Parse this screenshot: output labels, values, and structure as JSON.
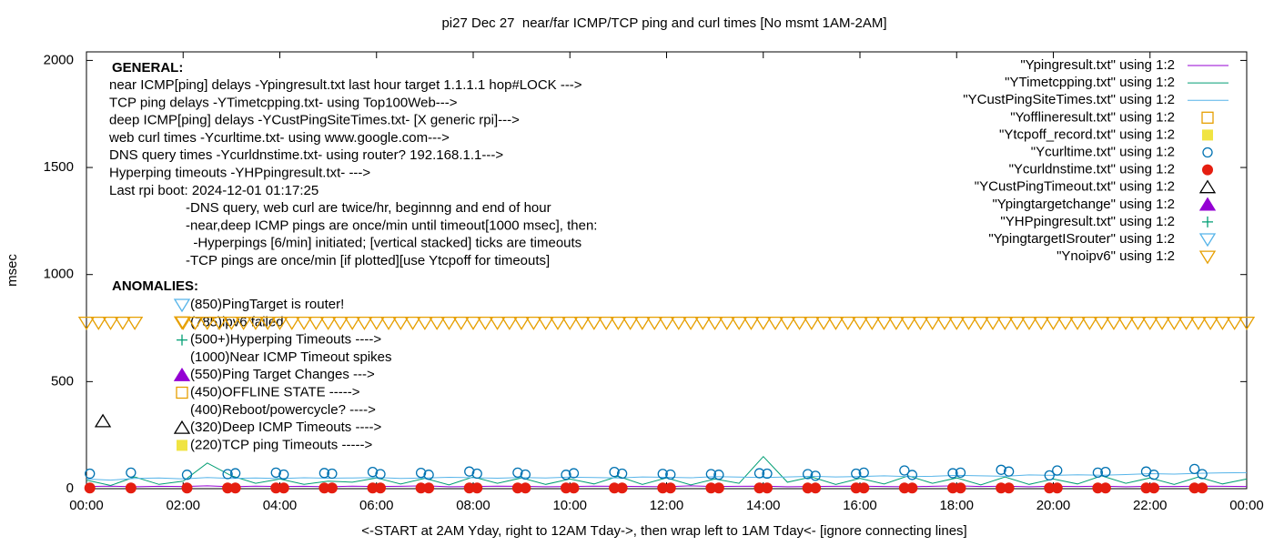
{
  "chart_data": {
    "type": "scatter",
    "title": "pi27 Dec 27  near/far ICMP/TCP ping and curl times [No msmt 1AM-2AM]",
    "xlabel": "<-START at 2AM Yday, right to 12AM Tday->, then wrap left to 1AM Tday<- [ignore connecting lines]",
    "ylabel": "msec",
    "xlim": [
      0,
      24
    ],
    "ylim": [
      0,
      2040
    ],
    "xticks": [
      {
        "value": 0,
        "label": "00:00"
      },
      {
        "value": 2,
        "label": "02:00"
      },
      {
        "value": 4,
        "label": "04:00"
      },
      {
        "value": 6,
        "label": "06:00"
      },
      {
        "value": 8,
        "label": "08:00"
      },
      {
        "value": 10,
        "label": "10:00"
      },
      {
        "value": 12,
        "label": "12:00"
      },
      {
        "value": 14,
        "label": "14:00"
      },
      {
        "value": 16,
        "label": "16:00"
      },
      {
        "value": 18,
        "label": "18:00"
      },
      {
        "value": 20,
        "label": "20:00"
      },
      {
        "value": 22,
        "label": "22:00"
      },
      {
        "value": 24,
        "label": "00:00"
      }
    ],
    "yticks": [
      0,
      500,
      1000,
      1500,
      2000
    ],
    "legend": "upper right",
    "annotations": {
      "general_heading": "GENERAL:",
      "general": [
        "near ICMP[ping] delays -Ypingresult.txt last hour target 1.1.1.1 hop#LOCK --->",
        "TCP ping delays -YTimetcpping.txt- using Top100Web--->",
        "deep ICMP[ping] delays -YCustPingSiteTimes.txt- [X generic rpi]--->",
        "web curl times -Ycurltime.txt- using www.google.com--->",
        "DNS query times -Ycurldnstime.txt- using router? 192.168.1.1--->",
        "Hyperping timeouts -YHPpingresult.txt- --->",
        "Last rpi boot: 2024-12-01 01:17:25"
      ],
      "notes": [
        "-DNS query, web curl are twice/hr, beginnng and end of hour",
        "-near,deep ICMP pings are once/min until timeout[1000 msec], then:",
        "  -Hyperpings [6/min] initiated; [vertical stacked] ticks are timeouts",
        "-TCP pings are once/min [if plotted][use Ytcpoff for timeouts]"
      ],
      "anomalies_heading": "ANOMALIES:",
      "anomalies": [
        "(850)PingTarget is router!",
        "(785)ipv6 failed",
        "(500+)Hyperping Timeouts ---->",
        "(1000)Near ICMP Timeout spikes",
        "(550)Ping Target Changes --->",
        "(450)OFFLINE STATE ----->",
        "(400)Reboot/powercycle? ---->",
        "(320)Deep ICMP Timeouts ---->",
        "(220)TCP ping Timeouts ----->"
      ]
    },
    "series": [
      {
        "name": "\"Ypingresult.txt\" using 1:2",
        "style": "line",
        "color": "#9400d3",
        "x": [
          0,
          0.5,
          1,
          1.5,
          2,
          2.5,
          3,
          3.5,
          4,
          4.5,
          5,
          5.5,
          6,
          6.5,
          7,
          7.5,
          8,
          8.5,
          9,
          9.5,
          10,
          10.5,
          11,
          11.5,
          12,
          12.5,
          13,
          13.5,
          14,
          14.5,
          15,
          15.5,
          16,
          16.5,
          17,
          17.5,
          18,
          18.5,
          19,
          19.5,
          20,
          20.5,
          21,
          21.5,
          22,
          22.5,
          23,
          23.5,
          24
        ],
        "values": [
          10,
          12,
          9,
          11,
          10,
          13,
          9,
          12,
          10,
          11,
          9,
          12,
          10,
          11,
          13,
          9,
          10,
          12,
          11,
          9,
          10,
          12,
          11,
          10,
          9,
          13,
          10,
          11,
          12,
          9,
          10,
          11,
          12,
          10,
          9,
          11,
          13,
          10,
          12,
          9,
          11,
          10,
          12,
          9,
          11,
          10,
          12,
          11,
          10
        ]
      },
      {
        "name": "\"YTimetcpping.txt\" using 1:2",
        "style": "line",
        "color": "#009e73",
        "x": [
          0,
          0.5,
          1,
          1.5,
          2,
          2.5,
          3,
          3.5,
          4,
          4.5,
          5,
          5.5,
          6,
          6.5,
          7,
          7.5,
          8,
          8.5,
          9,
          9.5,
          10,
          10.5,
          11,
          11.5,
          12,
          12.5,
          13,
          13.5,
          14,
          14.5,
          15,
          15.5,
          16,
          16.5,
          17,
          17.5,
          18,
          18.5,
          19,
          19.5,
          20,
          20.5,
          21,
          21.5,
          22,
          22.5,
          23,
          23.5,
          24
        ],
        "values": [
          40,
          15,
          55,
          20,
          35,
          120,
          60,
          25,
          45,
          20,
          35,
          30,
          50,
          22,
          48,
          18,
          55,
          25,
          50,
          20,
          45,
          22,
          58,
          20,
          50,
          18,
          45,
          25,
          150,
          30,
          55,
          20,
          48,
          22,
          60,
          25,
          50,
          18,
          55,
          20,
          45,
          22,
          60,
          25,
          50,
          20,
          55,
          22,
          45
        ]
      },
      {
        "name": "\"YCustPingSiteTimes.txt\" using 1:2",
        "style": "line",
        "color": "#56b4e9",
        "x": [
          0,
          0.5,
          1,
          1.5,
          2,
          2.5,
          3,
          3.5,
          4,
          4.5,
          5,
          5.5,
          6,
          6.5,
          7,
          7.5,
          8,
          8.5,
          9,
          9.5,
          10,
          10.5,
          11,
          11.5,
          12,
          12.5,
          13,
          13.5,
          14,
          14.5,
          15,
          15.5,
          16,
          16.5,
          17,
          17.5,
          18,
          18.5,
          19,
          19.5,
          20,
          20.5,
          21,
          21.5,
          22,
          22.5,
          23,
          23.5,
          24
        ],
        "values": [
          45,
          40,
          48,
          50,
          46,
          52,
          48,
          50,
          47,
          51,
          49,
          50,
          52,
          48,
          50,
          53,
          51,
          49,
          52,
          50,
          54,
          52,
          50,
          55,
          53,
          51,
          56,
          54,
          52,
          55,
          58,
          55,
          57,
          60,
          56,
          58,
          62,
          60,
          58,
          64,
          62,
          65,
          63,
          66,
          70,
          68,
          72,
          74,
          75
        ]
      },
      {
        "name": "\"Yofflineresult.txt\" using 1:2",
        "style": "points",
        "marker": "square-open",
        "color": "#e69f00",
        "x": [],
        "values": []
      },
      {
        "name": "\"Ytcpoff_record.txt\" using 1:2",
        "style": "points",
        "marker": "square",
        "color": "#f0e442",
        "x": [],
        "values": []
      },
      {
        "name": "\"Ycurltime.txt\" using 1:2",
        "style": "points",
        "marker": "circle-open",
        "color": "#0072b2",
        "x": [
          0.07,
          0.92,
          2.08,
          2.92,
          3.08,
          3.92,
          4.08,
          4.92,
          5.08,
          5.92,
          6.08,
          6.92,
          7.08,
          7.92,
          8.08,
          8.92,
          9.08,
          9.92,
          10.08,
          10.92,
          11.08,
          11.92,
          12.08,
          12.92,
          13.08,
          13.92,
          14.08,
          14.92,
          15.08,
          15.92,
          16.08,
          16.92,
          17.08,
          17.92,
          18.08,
          18.92,
          19.08,
          19.92,
          20.08,
          20.92,
          21.08,
          21.92,
          22.08,
          22.92,
          23.08
        ],
        "values": [
          70,
          75,
          65,
          68,
          72,
          75,
          66,
          73,
          70,
          78,
          68,
          74,
          65,
          80,
          70,
          75,
          66,
          65,
          72,
          78,
          70,
          69,
          66,
          68,
          65,
          72,
          70,
          68,
          60,
          70,
          75,
          85,
          64,
          72,
          75,
          88,
          80,
          62,
          85,
          75,
          78,
          80,
          65,
          92,
          68
        ]
      },
      {
        "name": "\"Ycurldnstime.txt\" using 1:2",
        "style": "points",
        "marker": "circle",
        "color": "#e51e10",
        "x": [
          0.07,
          0.92,
          2.08,
          2.92,
          3.08,
          3.92,
          4.08,
          4.92,
          5.08,
          5.92,
          6.08,
          6.92,
          7.08,
          7.92,
          8.08,
          8.92,
          9.08,
          9.92,
          10.08,
          10.92,
          11.08,
          11.92,
          12.08,
          12.92,
          13.08,
          13.92,
          14.08,
          14.92,
          15.08,
          15.92,
          16.08,
          16.92,
          17.08,
          17.92,
          18.08,
          18.92,
          19.08,
          19.92,
          20.08,
          20.92,
          21.08,
          21.92,
          22.08,
          22.92,
          23.08
        ],
        "values": [
          3,
          3,
          3,
          3,
          3,
          3,
          3,
          3,
          3,
          3,
          3,
          3,
          3,
          3,
          3,
          3,
          3,
          3,
          3,
          3,
          3,
          3,
          3,
          3,
          3,
          3,
          3,
          3,
          3,
          3,
          3,
          3,
          3,
          3,
          3,
          3,
          3,
          3,
          3,
          3,
          3,
          3,
          3,
          3,
          3
        ]
      },
      {
        "name": "\"YCustPingTimeout.txt\" using 1:2",
        "style": "points",
        "marker": "triangle-open",
        "color": "#000000",
        "x": [
          0.34
        ],
        "values": [
          315
        ]
      },
      {
        "name": "\"Ypingtargetchange\" using 1:2",
        "style": "points",
        "marker": "triangle",
        "color": "#9400d3",
        "x": [],
        "values": []
      },
      {
        "name": "\"YHPpingresult.txt\" using 1:2",
        "style": "points",
        "marker": "plus",
        "color": "#009e73",
        "x": [],
        "values": []
      },
      {
        "name": "\"YpingtargetISrouter\" using 1:2",
        "style": "points",
        "marker": "triangle-down-open",
        "color": "#56b4e9",
        "x": [],
        "values": []
      },
      {
        "name": "\"Ynoipv6\" using 1:2",
        "style": "points",
        "marker": "triangle-down-open",
        "color": "#e69f00",
        "x": [
          0,
          0.25,
          0.5,
          0.75,
          1,
          2,
          2.25,
          2.5,
          2.75,
          3,
          3.25,
          3.5,
          3.75,
          4,
          4.25,
          4.5,
          4.75,
          5,
          5.25,
          5.5,
          5.75,
          6,
          6.25,
          6.5,
          6.75,
          7,
          7.25,
          7.5,
          7.75,
          8,
          8.25,
          8.5,
          8.75,
          9,
          9.25,
          9.5,
          9.75,
          10,
          10.25,
          10.5,
          10.75,
          11,
          11.25,
          11.5,
          11.75,
          12,
          12.25,
          12.5,
          12.75,
          13,
          13.25,
          13.5,
          13.75,
          14,
          14.25,
          14.5,
          14.75,
          15,
          15.25,
          15.5,
          15.75,
          16,
          16.25,
          16.5,
          16.75,
          17,
          17.25,
          17.5,
          17.75,
          18,
          18.25,
          18.5,
          18.75,
          19,
          19.25,
          19.5,
          19.75,
          20,
          20.25,
          20.5,
          20.75,
          21,
          21.25,
          21.5,
          21.75,
          22,
          22.25,
          22.5,
          22.75,
          23,
          23.25,
          23.5,
          23.75,
          24
        ],
        "values": [
          775,
          775,
          775,
          775,
          775,
          775,
          775,
          775,
          775,
          775,
          775,
          775,
          775,
          775,
          775,
          775,
          775,
          775,
          775,
          775,
          775,
          775,
          775,
          775,
          775,
          775,
          775,
          775,
          775,
          775,
          775,
          775,
          775,
          775,
          775,
          775,
          775,
          775,
          775,
          775,
          775,
          775,
          775,
          775,
          775,
          775,
          775,
          775,
          775,
          775,
          775,
          775,
          775,
          775,
          775,
          775,
          775,
          775,
          775,
          775,
          775,
          775,
          775,
          775,
          775,
          775,
          775,
          775,
          775,
          775,
          775,
          775,
          775,
          775,
          775,
          775,
          775,
          775,
          775,
          775,
          775,
          775,
          775,
          775,
          775,
          775,
          775,
          775,
          775,
          775,
          775,
          775,
          775,
          775
        ]
      }
    ]
  }
}
